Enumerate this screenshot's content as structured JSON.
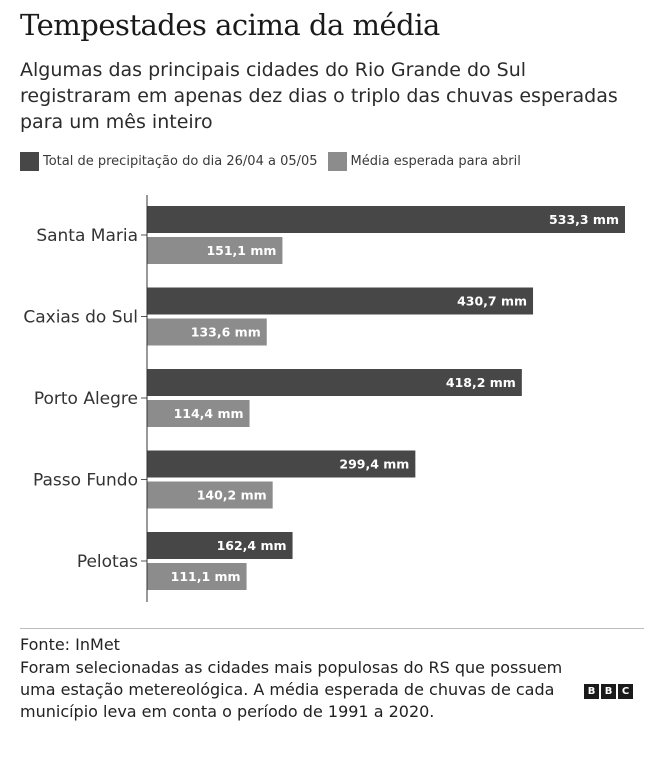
{
  "title": "Tempestades acima da média",
  "subtitle": "Algumas das principais cidades do Rio Grande do Sul registraram em apenas dez dias o triplo das chuvas esperadas para um mês inteiro",
  "footer": {
    "source": "Fonte: InMet",
    "note": "Foram selecionadas as cidades mais populosas do RS que possuem uma estação metereológica. A média esperada de chuvas de cada município leva em conta o período de 1991 a 2020.",
    "logo": [
      "B",
      "B",
      "C"
    ]
  },
  "chart_data": {
    "type": "bar",
    "orientation": "horizontal",
    "categories": [
      "Santa Maria",
      "Caxias do Sul",
      "Porto Alegre",
      "Passo Fundo",
      "Pelotas"
    ],
    "series": [
      {
        "name": "Total de precipitação do dia 26/04 a 05/05",
        "color": "#474747",
        "values": [
          533.3,
          430.7,
          418.2,
          299.4,
          162.4
        ],
        "labels": [
          "533,3 mm",
          "430,7 mm",
          "418,2 mm",
          "299,4 mm",
          "162,4 mm"
        ]
      },
      {
        "name": "Média esperada para abril",
        "color": "#8c8c8c",
        "values": [
          151.1,
          133.6,
          114.4,
          140.2,
          111.1
        ],
        "labels": [
          "151,1 mm",
          "133,6 mm",
          "114,4 mm",
          "140,2 mm",
          "111,1 mm"
        ]
      }
    ],
    "xlim": [
      0,
      533.3
    ],
    "legend_position": "top-left",
    "grid": false
  }
}
